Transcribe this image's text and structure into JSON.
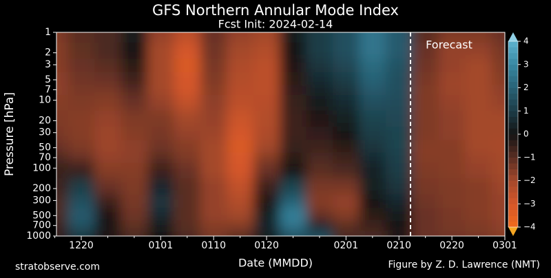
{
  "chart_data": {
    "type": "heatmap",
    "title": "GFS Northern Annular Mode Index",
    "subtitle": "Fcst Init: 2024-02-14",
    "x_label": "Date (MMDD)",
    "y_label": "Pressure [hPa]",
    "source": "stratobserve.com",
    "credit": "Figure by Z. D. Lawrence (NMT)",
    "annotation": "Forecast",
    "categories": [
      null,
      "1220",
      null,
      null,
      "0101",
      null,
      "0110",
      null,
      "0120",
      null,
      null,
      "0201",
      null,
      "0210",
      null,
      "0220",
      null,
      "0301"
    ],
    "y": [
      1,
      2,
      3,
      5,
      7,
      10,
      20,
      30,
      50,
      70,
      100,
      200,
      300,
      500,
      700,
      1000
    ],
    "ylim": [
      1000,
      1
    ],
    "log_y": true,
    "yticks": [
      1,
      2,
      3,
      5,
      7,
      10,
      20,
      30,
      50,
      70,
      100,
      200,
      300,
      500,
      700,
      1000
    ],
    "z": [
      [
        -1.5,
        -1,
        -0.8,
        0.2,
        -1.8,
        -2.5,
        -1.2,
        -1.8,
        -2,
        0.2,
        1,
        1.5,
        2.5,
        1.8,
        -1,
        -1.5,
        -1.5,
        -1.2
      ],
      [
        -1.6,
        -1.1,
        -0.8,
        0,
        -2,
        -3,
        -1.3,
        -2,
        -2.3,
        0,
        1,
        1.5,
        2.5,
        1.8,
        -1.2,
        -1.8,
        -1.8,
        -1.4
      ],
      [
        -1.6,
        -1.2,
        -1,
        -0.3,
        -2,
        -3.2,
        -1.4,
        -2.2,
        -2.5,
        -0.2,
        0.8,
        1.3,
        2.2,
        1.6,
        -1.3,
        -1.8,
        -2,
        -1.5
      ],
      [
        -1.7,
        -1.3,
        -1.2,
        -0.6,
        -2,
        -3,
        -1.5,
        -2.3,
        -2.5,
        -0.3,
        0.6,
        1,
        2,
        1.5,
        -1.4,
        -1.9,
        -2,
        -1.6
      ],
      [
        -1.7,
        -1.4,
        -1.4,
        -0.9,
        -2,
        -3,
        -1.6,
        -2.4,
        -2.5,
        -0.4,
        0.4,
        0.8,
        1.8,
        1.5,
        -1.5,
        -1.9,
        -2,
        -1.7
      ],
      [
        -1.6,
        -1.5,
        -1.6,
        -1.2,
        -1.8,
        -2.6,
        -1.7,
        -2.5,
        -2.4,
        -0.5,
        0.2,
        0.6,
        1.5,
        1.4,
        -1.5,
        -1.8,
        -2,
        -1.8
      ],
      [
        -1.5,
        -1.6,
        -1.8,
        -1.5,
        -1.5,
        -2,
        -1.8,
        -2.8,
        -2.3,
        -0.6,
        -0.2,
        0.3,
        1.2,
        1.3,
        -1.5,
        -1.7,
        -2,
        -2
      ],
      [
        -1.4,
        -1.6,
        -1.9,
        -1.6,
        -1.4,
        -1.8,
        -1.9,
        -3,
        -2.2,
        -0.6,
        -0.4,
        0,
        1,
        1.2,
        -1.5,
        -1.7,
        -2,
        -2
      ],
      [
        -1.2,
        -1.5,
        -1.9,
        -1.7,
        -1.3,
        -1.6,
        -2,
        -3.2,
        -2,
        -0.5,
        -0.6,
        -0.3,
        0.8,
        1.2,
        -1.6,
        -1.6,
        -2,
        -2.1
      ],
      [
        -0.8,
        -1.2,
        -1.8,
        -1.7,
        -1,
        -1.5,
        -2,
        -3.1,
        -1.6,
        -0.3,
        -0.8,
        -0.6,
        0.6,
        1.1,
        -1.6,
        -1.6,
        -1.9,
        -2
      ],
      [
        -0.5,
        -0.5,
        -1.6,
        -1.6,
        -0.6,
        -1.2,
        -2,
        -3,
        -1.2,
        0,
        -1,
        -0.8,
        0.4,
        1,
        -1.5,
        -1.6,
        -1.8,
        -2
      ],
      [
        -0.6,
        1,
        -1.2,
        -1.5,
        0.5,
        -1,
        -1.8,
        -2.6,
        -0.6,
        1.2,
        -1.4,
        -1.4,
        0.3,
        0.8,
        -1.4,
        -1.5,
        -1.6,
        -1.9
      ],
      [
        -0.8,
        1.5,
        -0.6,
        -1.4,
        0.8,
        -1,
        -1.8,
        -2.3,
        -0.2,
        2,
        -1.6,
        -1.8,
        0,
        0.5,
        -1.3,
        -1.5,
        -1.6,
        -1.8
      ],
      [
        -0.8,
        1.8,
        -0.2,
        -1.3,
        0.6,
        -1,
        -1.8,
        -2,
        0.3,
        2.8,
        -1.2,
        -1.6,
        -0.3,
        0.2,
        -1.2,
        -1.4,
        -1.6,
        -1.8
      ],
      [
        -0.6,
        1.6,
        0,
        -1.1,
        0.2,
        -1,
        -1.6,
        -1.6,
        0.5,
        2.5,
        0.5,
        -1,
        -0.6,
        0,
        -1.2,
        -1.4,
        -1.5,
        -1.7
      ],
      [
        -0.4,
        0.8,
        -0.2,
        -0.8,
        0,
        -0.8,
        -1.4,
        -1,
        0.2,
        1.5,
        1.5,
        -0.8,
        -0.8,
        -0.2,
        -1.2,
        -1.3,
        -1.4,
        -1.6
      ]
    ],
    "colorscale": [
      {
        "value": -4,
        "color": "#f26a1b"
      },
      {
        "value": -3,
        "color": "#d4572a"
      },
      {
        "value": -2,
        "color": "#a4482b"
      },
      {
        "value": -1,
        "color": "#5a2e23"
      },
      {
        "value": 0,
        "color": "#141414"
      },
      {
        "value": 1,
        "color": "#1c3c47"
      },
      {
        "value": 2,
        "color": "#286276"
      },
      {
        "value": 3,
        "color": "#3888a2"
      },
      {
        "value": 4,
        "color": "#5cb2cf"
      }
    ],
    "colorbar_lim": [
      -4,
      4
    ],
    "colorbar_ticks": [
      4,
      3,
      2,
      1,
      0,
      {
        "value": -1,
        "label": "−1"
      },
      {
        "value": -2,
        "label": "−2"
      },
      {
        "value": -3,
        "label": "−3"
      },
      {
        "value": -4,
        "label": "−4"
      }
    ]
  }
}
